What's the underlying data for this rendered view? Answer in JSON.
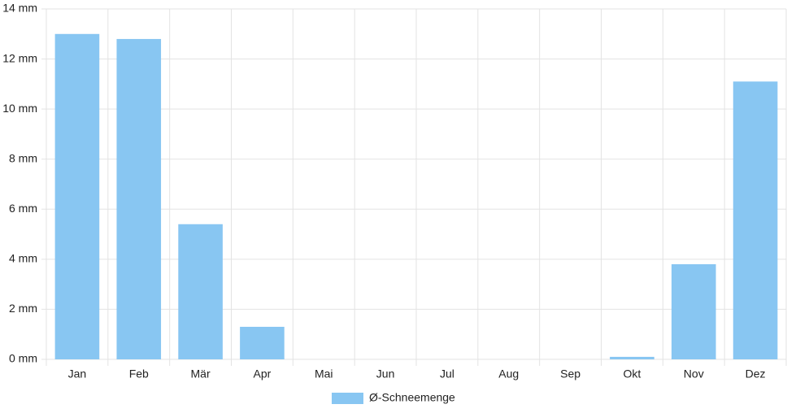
{
  "chart_data": {
    "type": "bar",
    "categories": [
      "Jan",
      "Feb",
      "Mär",
      "Apr",
      "Mai",
      "Jun",
      "Jul",
      "Aug",
      "Sep",
      "Okt",
      "Nov",
      "Dez"
    ],
    "series": [
      {
        "name": "Ø-Schneemenge",
        "color": "#88c6f2",
        "values": [
          13.0,
          12.8,
          5.4,
          1.3,
          0,
          0,
          0,
          0,
          0,
          0.1,
          3.8,
          11.1
        ]
      }
    ],
    "ylim": [
      0,
      14
    ],
    "yticks": [
      {
        "value": 0,
        "label": "0 mm"
      },
      {
        "value": 2,
        "label": "2 mm"
      },
      {
        "value": 4,
        "label": "4 mm"
      },
      {
        "value": 6,
        "label": "6 mm"
      },
      {
        "value": 8,
        "label": "8 mm"
      },
      {
        "value": 10,
        "label": "10 mm"
      },
      {
        "value": 12,
        "label": "12 mm"
      },
      {
        "value": 14,
        "label": "14 mm"
      }
    ],
    "grid": true,
    "legend": "bottom"
  }
}
